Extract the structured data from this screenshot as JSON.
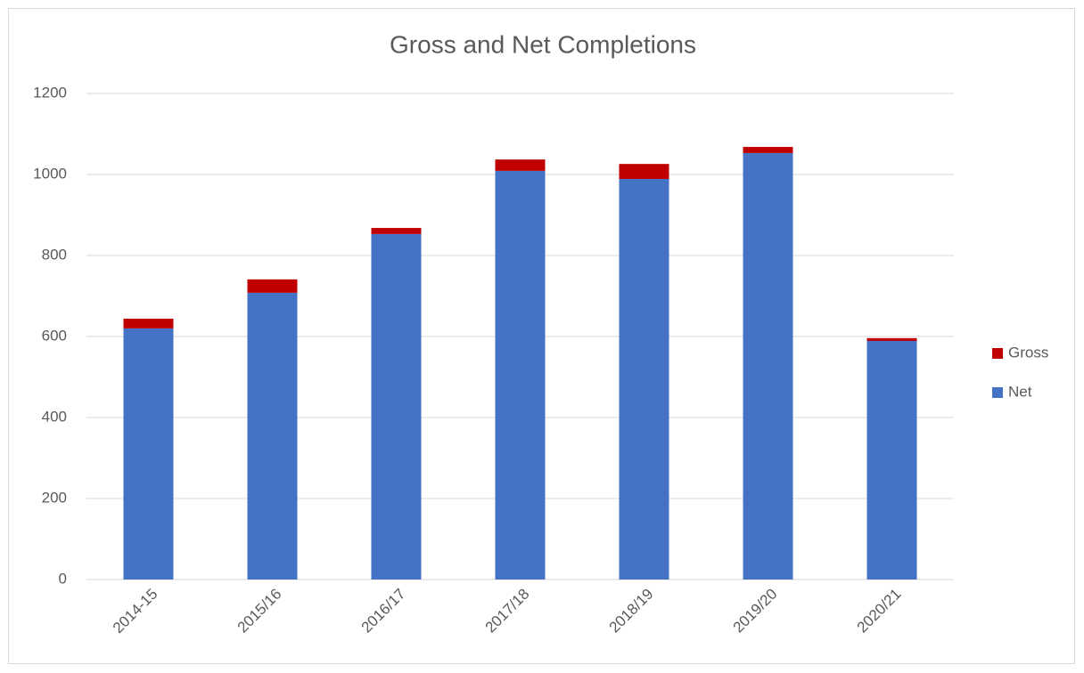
{
  "chart_data": {
    "type": "stacked_bar",
    "title": "Gross and Net Completions",
    "categories": [
      "2014-15",
      "2015/16",
      "2016/17",
      "2017/18",
      "2018/19",
      "2019/20",
      "2020/21"
    ],
    "series": [
      {
        "name": "Net",
        "color": "#4472c4",
        "values": [
          620,
          708,
          853,
          1009,
          989,
          1053,
          589
        ]
      },
      {
        "name": "Gross",
        "color": "#c00000",
        "values": [
          24,
          33,
          15,
          28,
          37,
          15,
          7
        ]
      }
    ],
    "ylim": [
      0,
      1200
    ],
    "yticks": [
      0,
      200,
      400,
      600,
      800,
      1000,
      1200
    ],
    "grid": true,
    "legend": "right"
  }
}
